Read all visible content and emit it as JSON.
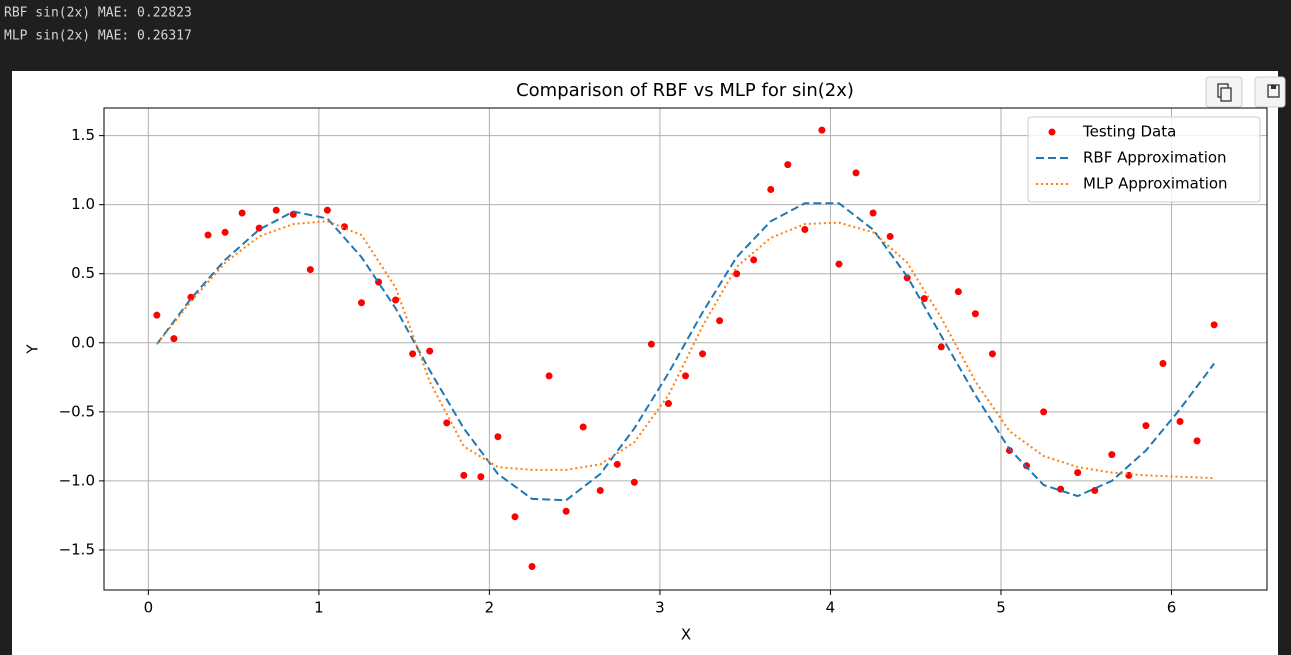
{
  "output_lines": [
    "RBF sin(2x) MAE: 0.22823",
    "MLP sin(2x) MAE: 0.26317"
  ],
  "chart_data": {
    "type": "line",
    "title": "Comparison of RBF vs MLP for sin(2x)",
    "x_label": "X",
    "y_label": "Y",
    "xlim": [
      -0.26,
      6.56
    ],
    "ylim": [
      -1.79,
      1.7
    ],
    "xticks": [
      0,
      1,
      2,
      3,
      4,
      5,
      6
    ],
    "yticks": [
      {
        "value": -1.5,
        "label": "−1.5"
      },
      {
        "value": -1,
        "label": "−1.0"
      },
      {
        "value": -0.5,
        "label": "−0.5"
      },
      {
        "value": 0,
        "label": "0.0"
      },
      {
        "value": 0.5,
        "label": "0.5"
      },
      {
        "value": 1,
        "label": "1.0"
      },
      {
        "value": 1.5,
        "label": "1.5"
      }
    ],
    "grid": true,
    "legend": "upper right",
    "series": [
      {
        "name": "Testing Data",
        "color": "#ff0000",
        "kind": "scatter",
        "x": [
          0.05,
          0.15,
          0.25,
          0.35,
          0.45,
          0.55,
          0.65,
          0.75,
          0.85,
          0.95,
          1.05,
          1.15,
          1.25,
          1.35,
          1.45,
          1.55,
          1.65,
          1.75,
          1.85,
          1.95,
          2.05,
          2.15,
          2.25,
          2.35,
          2.45,
          2.55,
          2.65,
          2.75,
          2.85,
          2.95,
          3.05,
          3.15,
          3.25,
          3.35,
          3.45,
          3.55,
          3.65,
          3.75,
          3.85,
          3.95,
          4.05,
          4.15,
          4.25,
          4.35,
          4.45,
          4.55,
          4.65,
          4.75,
          4.85,
          4.95,
          5.05,
          5.15,
          5.25,
          5.35,
          5.45,
          5.55,
          5.65,
          5.75,
          5.85,
          5.95,
          6.05,
          6.15,
          6.25
        ],
        "values": [
          0.2,
          0.03,
          0.33,
          0.78,
          0.8,
          0.94,
          0.83,
          0.96,
          0.93,
          0.53,
          0.96,
          0.84,
          0.29,
          0.44,
          0.31,
          -0.08,
          -0.06,
          -0.58,
          -0.96,
          -0.97,
          -0.68,
          -1.26,
          -1.62,
          -0.24,
          -1.22,
          -0.61,
          -1.07,
          -0.88,
          -1.01,
          -0.01,
          -0.44,
          -0.24,
          -0.08,
          0.16,
          0.5,
          0.6,
          1.11,
          1.29,
          0.82,
          1.54,
          0.57,
          1.23,
          0.94,
          0.77,
          0.47,
          0.32,
          -0.03,
          0.37,
          0.21,
          -0.08,
          -0.78,
          -0.89,
          -0.5,
          -1.06,
          -0.94,
          -1.07,
          -0.81,
          -0.96,
          -0.6,
          -0.15,
          -0.57,
          -0.71,
          0.13
        ]
      },
      {
        "name": "RBF Approximation",
        "color": "#1f77b4",
        "kind": "line",
        "dash": "dashed",
        "x": [
          0.05,
          0.25,
          0.45,
          0.65,
          0.85,
          1.05,
          1.25,
          1.45,
          1.65,
          1.85,
          2.05,
          2.25,
          2.45,
          2.65,
          2.85,
          3.05,
          3.25,
          3.45,
          3.65,
          3.85,
          4.05,
          4.25,
          4.45,
          4.65,
          4.85,
          5.05,
          5.25,
          5.45,
          5.65,
          5.85,
          6.05,
          6.25
        ],
        "values": [
          -0.01,
          0.32,
          0.6,
          0.82,
          0.95,
          0.9,
          0.62,
          0.25,
          -0.2,
          -0.62,
          -0.95,
          -1.13,
          -1.14,
          -0.95,
          -0.62,
          -0.22,
          0.22,
          0.62,
          0.88,
          1.01,
          1.01,
          0.82,
          0.48,
          0.05,
          -0.38,
          -0.77,
          -1.03,
          -1.11,
          -1.0,
          -0.78,
          -0.48,
          -0.15
        ]
      },
      {
        "name": "MLP Approximation",
        "color": "#ff7f0e",
        "kind": "line",
        "dash": "dotted",
        "x": [
          0.05,
          0.25,
          0.45,
          0.65,
          0.85,
          1.05,
          1.25,
          1.45,
          1.65,
          1.85,
          2.05,
          2.25,
          2.45,
          2.65,
          2.85,
          3.05,
          3.25,
          3.45,
          3.65,
          3.85,
          4.05,
          4.25,
          4.45,
          4.65,
          4.85,
          5.05,
          5.25,
          5.45,
          5.65,
          5.85,
          6.05,
          6.25
        ],
        "values": [
          -0.01,
          0.3,
          0.58,
          0.77,
          0.86,
          0.88,
          0.78,
          0.4,
          -0.28,
          -0.75,
          -0.9,
          -0.92,
          -0.92,
          -0.88,
          -0.72,
          -0.38,
          0.12,
          0.55,
          0.76,
          0.86,
          0.87,
          0.8,
          0.58,
          0.18,
          -0.28,
          -0.64,
          -0.82,
          -0.9,
          -0.94,
          -0.96,
          -0.97,
          -0.98
        ]
      }
    ]
  }
}
